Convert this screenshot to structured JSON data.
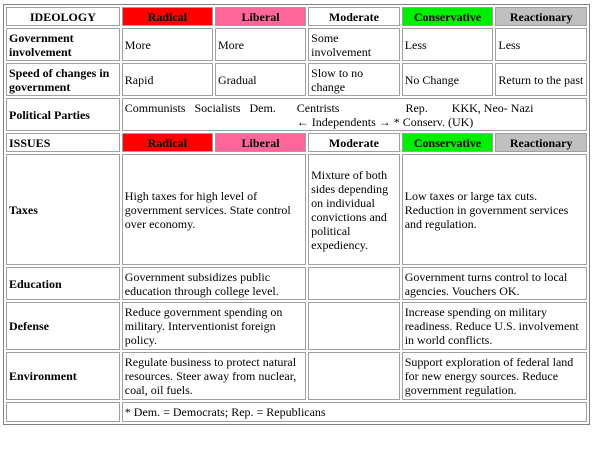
{
  "header": {
    "ideology_label": "IDEOLOGY",
    "radical": "Radical",
    "liberal": "Liberal",
    "moderate": "Moderate",
    "conservative": "Conservative",
    "reactionary": "Reactionary"
  },
  "rows": {
    "gov_label": "Government involvement",
    "gov": [
      "More",
      "More",
      "Some involvement",
      "Less",
      "Less"
    ],
    "speed_label": "Speed of changes in government",
    "speed": [
      "Rapid",
      "Gradual",
      "Slow to no change",
      "No Change",
      "Return to the past"
    ],
    "parties_label": "Political Parties",
    "parties_line1": "Communists   Socialists   Dem.       Centrists                      Rep.        KKK, Neo- Nazi",
    "parties_line2": "← Independents → * Conserv. (UK)"
  },
  "issues_header": {
    "label": "ISSUES",
    "radical": "Radical",
    "liberal": "Liberal",
    "moderate": "Moderate",
    "conservative": "Conservative",
    "reactionary": "Reactionary"
  },
  "issues": {
    "taxes_label": "Taxes",
    "taxes_left": "High taxes for high level of government services. State control over economy.",
    "taxes_moderate": "Mixture of both sides depending on individual convictions and political expediency.",
    "taxes_right": "Low taxes or large tax cuts. Reduction in government services and regulation.",
    "education_label": "Education",
    "education_left": "Government subsidizes public education through college level.",
    "education_moderate": "",
    "education_right": "Government turns control to local agencies. Vouchers OK.",
    "defense_label": "Defense",
    "defense_left": "Reduce government spending on military. Interventionist foreign policy.",
    "defense_moderate": "",
    "defense_right": "Increase spending on military readiness. Reduce U.S. involvement in world conflicts.",
    "environment_label": "Environment",
    "environment_left": "Regulate business to protect natural resources. Steer away from nuclear, coal, oil fuels.",
    "environment_moderate": "",
    "environment_right": "Support exploration of federal land for new energy sources. Reduce government regulation."
  },
  "footnote": "* Dem. = Democrats; Rep. = Republicans",
  "colors": {
    "radical": "#ff0000",
    "liberal": "#ff6699",
    "conservative": "#00ee00",
    "reactionary": "#c0c0c0"
  }
}
